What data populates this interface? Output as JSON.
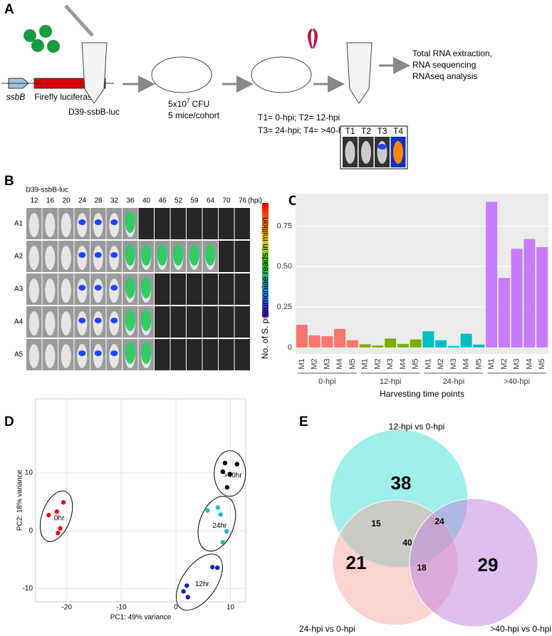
{
  "panel_labels": [
    "A",
    "B",
    "C",
    "D",
    "E"
  ],
  "panel_a": {
    "gene": "ssbB",
    "reporter": "Firefly luciferase",
    "strain": "D39-ssbB-luc",
    "dose": "5x10",
    "dose_exponent": "7",
    "dose_unit": "CFU",
    "cohort": "5 mice/cohort",
    "times": [
      "T1= 0-hpi; T2= 12-hpi",
      "T3= 24-hpi; T4= >40-hpi"
    ],
    "steps": [
      "Total RNA extraction,",
      "RNA sequencing",
      "RNAseq analysis"
    ],
    "images": [
      "T1",
      "T2",
      "T3",
      "T4"
    ]
  },
  "panel_b": {
    "strain": "D39-ssbB-luc",
    "hpi": [
      12,
      16,
      20,
      24,
      28,
      32,
      36,
      40,
      46,
      52,
      59,
      64,
      70,
      76
    ],
    "unit": "(hpi)",
    "rows": [
      "A1",
      "A2",
      "A3",
      "A4",
      "A5"
    ]
  },
  "chart_data": [
    {
      "type": "bar",
      "ylabel": "No. of S. pneumoniae reads in million",
      "xlabel": "Harvesting time points",
      "categories": [
        "M1",
        "M2",
        "M3",
        "M4",
        "M5"
      ],
      "series": [
        {
          "name": "0-hpi",
          "color": "#f8766d",
          "values": [
            0.14,
            0.075,
            0.07,
            0.115,
            0.045
          ]
        },
        {
          "name": "12-hpi",
          "color": "#7cae00",
          "values": [
            0.02,
            0.012,
            0.055,
            0.022,
            0.05
          ]
        },
        {
          "name": "24-hpi",
          "color": "#00bfc4",
          "values": [
            0.1,
            0.045,
            0.01,
            0.085,
            0.018
          ]
        },
        {
          "name": ">40-hpi",
          "color": "#c77cff",
          "values": [
            0.9,
            0.43,
            0.61,
            0.67,
            0.62
          ]
        }
      ],
      "ylim": [
        -0.04,
        0.95
      ],
      "yticks": [
        0,
        0.25,
        {
          "value": 0.5,
          "label": "0.50"
        },
        0.75
      ],
      "grid": true
    },
    {
      "type": "scatter",
      "xlabel": "PC1: 49% variance",
      "ylabel": "PC2: 18% variance",
      "series": [
        {
          "name": "0hr",
          "color": "#e8100f",
          "x": [
            -23.3,
            -21.8,
            -20.6,
            -21.2,
            -21.6
          ],
          "y": [
            2.7,
            3.3,
            4.9,
            0.4,
            -0.4
          ]
        },
        {
          "name": ">40hr",
          "color": "#000000",
          "x": [
            9.0,
            11.2,
            8.6,
            9.9,
            9.4
          ],
          "y": [
            11.7,
            11.5,
            10.2,
            9.8,
            7.5
          ]
        },
        {
          "name": "24hr",
          "color": "#1abcbf",
          "x": [
            5.8,
            7.7,
            8.2,
            9.3,
            8.6
          ],
          "y": [
            3.5,
            4.0,
            2.8,
            -0.1,
            -2.0
          ]
        },
        {
          "name": "12hr",
          "color": "#1420c8",
          "x": [
            6.7,
            7.6,
            2.0,
            1.4,
            2.2
          ],
          "y": [
            -6.3,
            -6.4,
            -9.5,
            -10.5,
            -11.5
          ]
        }
      ],
      "xlim": [
        -25.7,
        12.8
      ],
      "ylim": [
        -12.3,
        22.8
      ],
      "xticks": [
        -20,
        -10,
        0,
        10
      ],
      "yticks": [
        10,
        0,
        -10
      ],
      "grid": true
    }
  ],
  "venn": {
    "sets": [
      "12-hpi vs 0-hpi",
      "24-hpi vs 0-hpi",
      ">40-hpi vs 0-hpi"
    ],
    "counts": {
      "only_12": 38,
      "only_24": 21,
      "only_40": 29,
      "12_24": 15,
      "12_40": 24,
      "24_40": 18,
      "all": 40
    }
  }
}
